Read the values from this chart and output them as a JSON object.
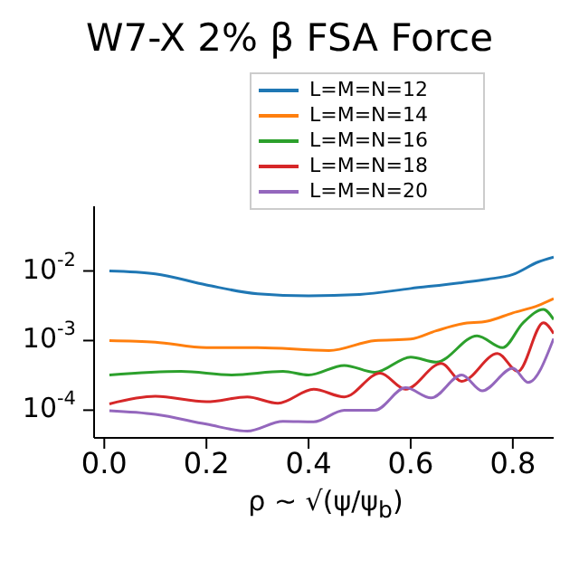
{
  "chart_data": {
    "type": "line",
    "title": "W7-X 2% β FSA Force",
    "xlabel": "ρ ~ √(ψ/ψ$_{b}$)",
    "log": "y",
    "xlim": [
      -0.02,
      0.88
    ],
    "xticks": [
      {
        "value": 0,
        "label": "0.0"
      },
      0.2,
      0.4,
      0.6,
      0.8
    ],
    "ylim": [
      4e-05,
      0.085
    ],
    "yticks": [
      {
        "value": 0.01,
        "label": "10$^{-2}$"
      },
      {
        "value": 0.001,
        "label": "10$^{-3}$"
      },
      {
        "value": 0.0001,
        "label": "10$^{-4}$"
      }
    ],
    "grid": false,
    "legend": "top",
    "marker": "none",
    "line_style": "solid",
    "series": [
      {
        "name": "L=M=N=12",
        "color": "#1f77b4",
        "x": [
          0.01,
          0.1,
          0.2,
          0.3,
          0.4,
          0.5,
          0.6,
          0.7,
          0.75,
          0.8,
          0.85,
          0.88
        ],
        "values": [
          0.01,
          0.0091,
          0.0063,
          0.0047,
          0.0044,
          0.0046,
          0.0056,
          0.0068,
          0.0076,
          0.0089,
          0.0135,
          0.0158
        ]
      },
      {
        "name": "L=M=N=14",
        "color": "#ff7f0e",
        "x": [
          0.01,
          0.1,
          0.2,
          0.3,
          0.44,
          0.53,
          0.6,
          0.65,
          0.7,
          0.75,
          0.8,
          0.85,
          0.88
        ],
        "values": [
          0.001,
          0.00095,
          0.00079,
          0.00079,
          0.00072,
          0.001,
          0.00105,
          0.00138,
          0.00174,
          0.0019,
          0.0025,
          0.0032,
          0.004
        ]
      },
      {
        "name": "L=M=N=16",
        "color": "#2ca02c",
        "x": [
          0.01,
          0.15,
          0.25,
          0.35,
          0.4,
          0.47,
          0.53,
          0.6,
          0.65,
          0.73,
          0.78,
          0.82,
          0.86,
          0.88
        ],
        "values": [
          0.00032,
          0.00036,
          0.00032,
          0.00036,
          0.00032,
          0.00044,
          0.00035,
          0.00058,
          0.00049,
          0.00117,
          0.00079,
          0.0018,
          0.0028,
          0.002
        ]
      },
      {
        "name": "L=M=N=18",
        "color": "#d62728",
        "x": [
          0.01,
          0.1,
          0.2,
          0.28,
          0.34,
          0.41,
          0.47,
          0.54,
          0.59,
          0.66,
          0.7,
          0.77,
          0.81,
          0.86,
          0.88
        ],
        "values": [
          0.000123,
          0.000158,
          0.000132,
          0.000155,
          0.000126,
          0.0002,
          0.000155,
          0.00034,
          0.0002,
          0.00047,
          0.00026,
          0.00065,
          0.00036,
          0.0018,
          0.00126
        ]
      },
      {
        "name": "L=M=N=20",
        "color": "#9467bd",
        "x": [
          0.01,
          0.1,
          0.2,
          0.28,
          0.35,
          0.41,
          0.47,
          0.53,
          0.59,
          0.64,
          0.7,
          0.74,
          0.8,
          0.83,
          0.88
        ],
        "values": [
          9.8e-05,
          8.7e-05,
          6.3e-05,
          5e-05,
          6.9e-05,
          6.8e-05,
          0.0001,
          0.0001,
          0.00021,
          0.00015,
          0.00032,
          0.00019,
          0.0004,
          0.00025,
          0.00107
        ]
      }
    ]
  }
}
